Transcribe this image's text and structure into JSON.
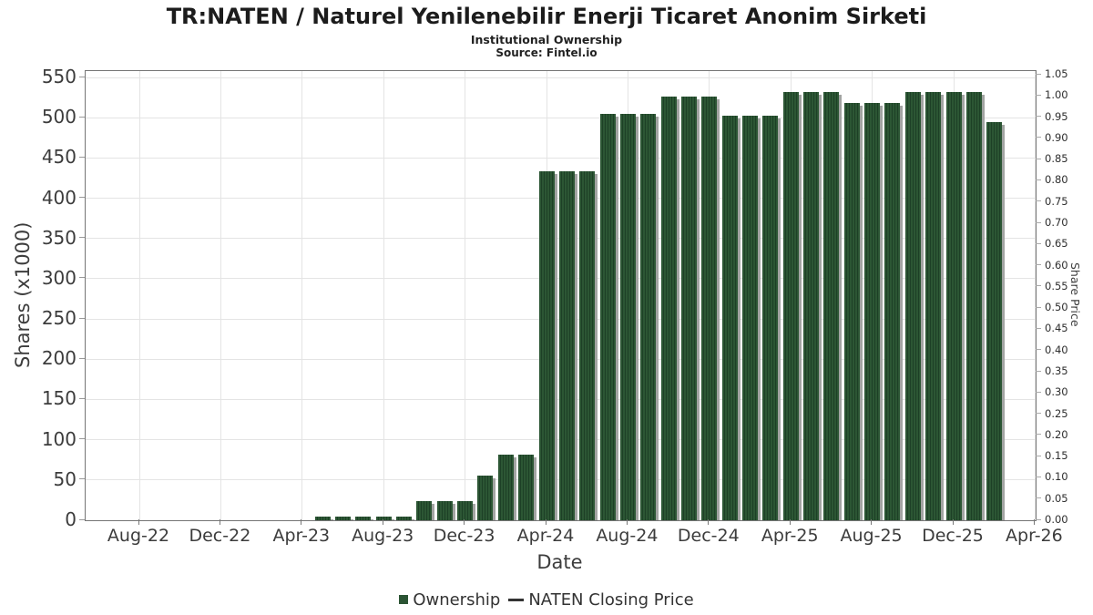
{
  "header": {
    "title": "TR:NATEN / Naturel Yenilenebilir Enerji Ticaret Anonim Sirketi",
    "subtitle": "Institutional Ownership",
    "source": "Source: Fintel.io"
  },
  "colors": {
    "bar_green": "#2b5434",
    "bar_stripe": "#1d4026",
    "bar_shadow": "#a2a4a2",
    "gridline": "#e4e4e4",
    "plot_border": "#757575",
    "text": "#3c3c3c",
    "line_series": "#333333"
  },
  "legend": {
    "items": [
      {
        "label": "Ownership",
        "marker": "square",
        "color": "#2b5434"
      },
      {
        "label": "NATEN Closing Price",
        "marker": "line",
        "color": "#333333"
      }
    ]
  },
  "chart_data": {
    "type": "bar",
    "title": "TR:NATEN / Naturel Yenilenebilir Enerji Ticaret Anonim Sirketi",
    "subtitle": "Institutional Ownership",
    "source": "Source: Fintel.io",
    "xlabel": "Date",
    "ylabel": "Shares (x1000)",
    "ylabel_right": "Share Price",
    "grid": true,
    "legend_position": "bottom",
    "ylim": [
      0,
      550
    ],
    "y_ticks": [
      0,
      50,
      100,
      150,
      200,
      250,
      300,
      350,
      400,
      450,
      500,
      550
    ],
    "ylim_right": [
      0,
      1.05
    ],
    "y_ticks_right": [
      "0.00",
      "0.05",
      "0.10",
      "0.15",
      "0.20",
      "0.25",
      "0.30",
      "0.35",
      "0.40",
      "0.45",
      "0.50",
      "0.55",
      "0.60",
      "0.65",
      "0.70",
      "0.75",
      "0.80",
      "0.85",
      "0.90",
      "0.95",
      "1.00",
      "1.05"
    ],
    "x_axis_start": "Aug-22",
    "x_axis_end": "Apr-26",
    "months_per_tick": 4,
    "x_tick_labels": [
      "Aug-22",
      "Dec-22",
      "Apr-23",
      "Aug-23",
      "Dec-23",
      "Apr-24",
      "Aug-24",
      "Dec-24",
      "Apr-25",
      "Aug-25",
      "Dec-25",
      "Apr-26"
    ],
    "series": [
      {
        "name": "Ownership",
        "type": "bar",
        "color": "#2b5434",
        "unit": "thousand shares",
        "points": [
          {
            "label": "May-23",
            "m": 9,
            "y": 5
          },
          {
            "label": "Jun-23",
            "m": 10,
            "y": 5
          },
          {
            "label": "Jul-23",
            "m": 11,
            "y": 5
          },
          {
            "label": "Aug-23",
            "m": 12,
            "y": 5
          },
          {
            "label": "Sep-23",
            "m": 13,
            "y": 5
          },
          {
            "label": "Oct-23",
            "m": 14,
            "y": 24
          },
          {
            "label": "Nov-23",
            "m": 15,
            "y": 24
          },
          {
            "label": "Dec-23",
            "m": 16,
            "y": 24
          },
          {
            "label": "Jan-24",
            "m": 17,
            "y": 55
          },
          {
            "label": "Feb-24",
            "m": 18,
            "y": 82
          },
          {
            "label": "Mar-24",
            "m": 19,
            "y": 82
          },
          {
            "label": "Apr-24",
            "m": 20,
            "y": 434
          },
          {
            "label": "May-24",
            "m": 21,
            "y": 434
          },
          {
            "label": "Jun-24",
            "m": 22,
            "y": 434
          },
          {
            "label": "Jul-24",
            "m": 23,
            "y": 505
          },
          {
            "label": "Aug-24",
            "m": 24,
            "y": 505
          },
          {
            "label": "Sep-24",
            "m": 25,
            "y": 505
          },
          {
            "label": "Oct-24",
            "m": 26,
            "y": 526
          },
          {
            "label": "Nov-24",
            "m": 27,
            "y": 526
          },
          {
            "label": "Dec-24",
            "m": 28,
            "y": 526
          },
          {
            "label": "Jan-25",
            "m": 29,
            "y": 502
          },
          {
            "label": "Feb-25",
            "m": 30,
            "y": 503
          },
          {
            "label": "Mar-25",
            "m": 31,
            "y": 503
          },
          {
            "label": "Apr-25",
            "m": 32,
            "y": 532
          },
          {
            "label": "May-25",
            "m": 33,
            "y": 532
          },
          {
            "label": "Jun-25",
            "m": 34,
            "y": 532
          },
          {
            "label": "Jul-25",
            "m": 35,
            "y": 518
          },
          {
            "label": "Aug-25",
            "m": 36,
            "y": 518
          },
          {
            "label": "Sep-25",
            "m": 37,
            "y": 518
          },
          {
            "label": "Oct-25",
            "m": 38,
            "y": 532
          },
          {
            "label": "Nov-25",
            "m": 39,
            "y": 532
          },
          {
            "label": "Dec-25",
            "m": 40,
            "y": 532
          },
          {
            "label": "Jan-26",
            "m": 41,
            "y": 532
          },
          {
            "label": "Feb-26",
            "m": 42,
            "y": 495
          }
        ]
      },
      {
        "name": "NATEN Closing Price",
        "type": "line",
        "color": "#333333",
        "points": []
      }
    ]
  }
}
